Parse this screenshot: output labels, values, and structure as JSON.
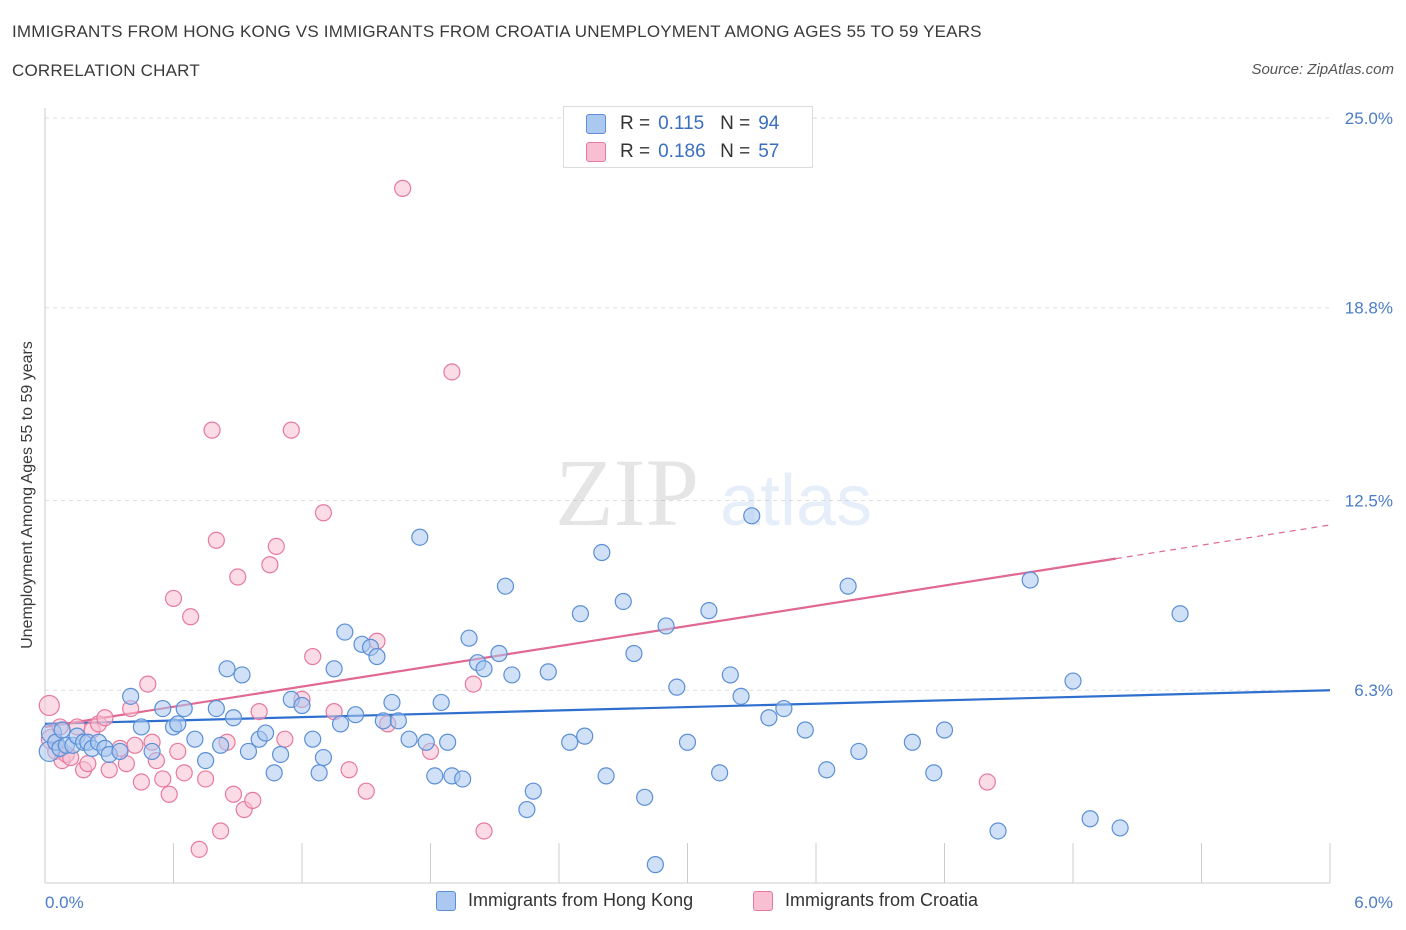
{
  "header": {
    "title": "IMMIGRANTS FROM HONG KONG VS IMMIGRANTS FROM CROATIA UNEMPLOYMENT AMONG AGES 55 TO 59 YEARS",
    "subtitle": "CORRELATION CHART",
    "source": "Source: ZipAtlas.com"
  },
  "watermark": {
    "zip": "ZIP",
    "atlas": "atlas"
  },
  "legend": {
    "hk": {
      "r_label": "R =",
      "r_value": "0.115",
      "n_label": "N =",
      "n_value": "94"
    },
    "hr": {
      "r_label": "R =",
      "r_value": "0.186",
      "n_label": "N =",
      "n_value": "57"
    }
  },
  "colors": {
    "hk_fill": "#aac8f0",
    "hk_stroke": "#5b8fd6",
    "hk_line": "#2f6fce",
    "hr_fill": "#f7bfd1",
    "hr_stroke": "#e8799d",
    "hr_line": "#e06892",
    "tick_text": "#4a7cc7"
  },
  "chart_data": {
    "type": "scatter",
    "title": "IMMIGRANTS FROM HONG KONG VS IMMIGRANTS FROM CROATIA UNEMPLOYMENT AMONG AGES 55 TO 59 YEARS",
    "xlabel": "",
    "ylabel": "Unemployment Among Ages 55 to 59 years",
    "xlim": [
      0,
      6
    ],
    "ylim": [
      0,
      25
    ],
    "x_tick_labels": [
      "0.0%",
      "6.0%"
    ],
    "y_ticks": [
      6.3,
      12.5,
      18.8,
      25.0
    ],
    "y_tick_labels": [
      "6.3%",
      "12.5%",
      "18.8%",
      "25.0%"
    ],
    "grid": "horizontal dashed",
    "legend_position": "top-center",
    "series": [
      {
        "name": "Immigrants from Hong Kong",
        "r": 0.115,
        "n": 94,
        "trend": {
          "x": [
            0,
            6
          ],
          "y": [
            5.2,
            6.3
          ]
        },
        "points": [
          [
            0.02,
            4.3
          ],
          [
            0.03,
            4.9
          ],
          [
            0.05,
            4.6
          ],
          [
            0.07,
            4.4
          ],
          [
            0.08,
            5.0
          ],
          [
            0.1,
            4.5
          ],
          [
            0.13,
            4.5
          ],
          [
            0.15,
            4.8
          ],
          [
            0.18,
            4.6
          ],
          [
            0.2,
            4.6
          ],
          [
            0.22,
            4.4
          ],
          [
            0.25,
            4.6
          ],
          [
            0.28,
            4.4
          ],
          [
            0.3,
            4.2
          ],
          [
            0.35,
            4.3
          ],
          [
            0.4,
            6.1
          ],
          [
            0.45,
            5.1
          ],
          [
            0.5,
            4.3
          ],
          [
            0.55,
            5.7
          ],
          [
            0.6,
            5.1
          ],
          [
            0.62,
            5.2
          ],
          [
            0.65,
            5.7
          ],
          [
            0.7,
            4.7
          ],
          [
            0.75,
            4.0
          ],
          [
            0.8,
            5.7
          ],
          [
            0.82,
            4.5
          ],
          [
            0.85,
            7.0
          ],
          [
            0.88,
            5.4
          ],
          [
            0.92,
            6.8
          ],
          [
            0.95,
            4.3
          ],
          [
            1.0,
            4.7
          ],
          [
            1.03,
            4.9
          ],
          [
            1.07,
            3.6
          ],
          [
            1.1,
            4.2
          ],
          [
            1.15,
            6.0
          ],
          [
            1.2,
            5.8
          ],
          [
            1.25,
            4.7
          ],
          [
            1.28,
            3.6
          ],
          [
            1.3,
            4.1
          ],
          [
            1.35,
            7.0
          ],
          [
            1.38,
            5.2
          ],
          [
            1.4,
            8.2
          ],
          [
            1.45,
            5.5
          ],
          [
            1.48,
            7.8
          ],
          [
            1.52,
            7.7
          ],
          [
            1.55,
            7.4
          ],
          [
            1.58,
            5.3
          ],
          [
            1.62,
            5.9
          ],
          [
            1.65,
            5.3
          ],
          [
            1.7,
            4.7
          ],
          [
            1.75,
            11.3
          ],
          [
            1.78,
            4.6
          ],
          [
            1.82,
            3.5
          ],
          [
            1.85,
            5.9
          ],
          [
            1.88,
            4.6
          ],
          [
            1.9,
            3.5
          ],
          [
            1.95,
            3.4
          ],
          [
            1.98,
            8.0
          ],
          [
            2.02,
            7.2
          ],
          [
            2.05,
            7.0
          ],
          [
            2.12,
            7.5
          ],
          [
            2.15,
            9.7
          ],
          [
            2.18,
            6.8
          ],
          [
            2.25,
            2.4
          ],
          [
            2.28,
            3.0
          ],
          [
            2.35,
            6.9
          ],
          [
            2.45,
            4.6
          ],
          [
            2.5,
            8.8
          ],
          [
            2.52,
            4.8
          ],
          [
            2.6,
            10.8
          ],
          [
            2.62,
            3.5
          ],
          [
            2.7,
            9.2
          ],
          [
            2.75,
            7.5
          ],
          [
            2.8,
            2.8
          ],
          [
            2.85,
            0.6
          ],
          [
            2.9,
            8.4
          ],
          [
            2.95,
            6.4
          ],
          [
            3.0,
            4.6
          ],
          [
            3.1,
            8.9
          ],
          [
            3.15,
            3.6
          ],
          [
            3.2,
            6.8
          ],
          [
            3.25,
            6.1
          ],
          [
            3.3,
            12.0
          ],
          [
            3.38,
            5.4
          ],
          [
            3.45,
            5.7
          ],
          [
            3.55,
            5.0
          ],
          [
            3.65,
            3.7
          ],
          [
            3.75,
            9.7
          ],
          [
            3.8,
            4.3
          ],
          [
            4.05,
            4.6
          ],
          [
            4.15,
            3.6
          ],
          [
            4.2,
            5.0
          ],
          [
            4.45,
            1.7
          ],
          [
            4.6,
            9.9
          ],
          [
            4.8,
            6.6
          ],
          [
            4.88,
            2.1
          ],
          [
            5.02,
            1.8
          ],
          [
            5.3,
            8.8
          ]
        ]
      },
      {
        "name": "Immigrants from Croatia",
        "r": 0.186,
        "n": 57,
        "trend": {
          "x": [
            0,
            6
          ],
          "y": [
            5.1,
            11.7
          ]
        },
        "trend_solid_until_x": 5.0,
        "points": [
          [
            0.02,
            5.8
          ],
          [
            0.03,
            4.7
          ],
          [
            0.05,
            4.3
          ],
          [
            0.07,
            5.1
          ],
          [
            0.08,
            4.0
          ],
          [
            0.1,
            4.2
          ],
          [
            0.12,
            4.1
          ],
          [
            0.15,
            5.1
          ],
          [
            0.18,
            3.7
          ],
          [
            0.2,
            3.9
          ],
          [
            0.22,
            5.0
          ],
          [
            0.25,
            5.2
          ],
          [
            0.28,
            5.4
          ],
          [
            0.3,
            3.7
          ],
          [
            0.35,
            4.4
          ],
          [
            0.38,
            3.9
          ],
          [
            0.4,
            5.7
          ],
          [
            0.42,
            4.5
          ],
          [
            0.45,
            3.3
          ],
          [
            0.48,
            6.5
          ],
          [
            0.5,
            4.6
          ],
          [
            0.52,
            4.0
          ],
          [
            0.55,
            3.4
          ],
          [
            0.58,
            2.9
          ],
          [
            0.6,
            9.3
          ],
          [
            0.62,
            4.3
          ],
          [
            0.65,
            3.6
          ],
          [
            0.68,
            8.7
          ],
          [
            0.72,
            1.1
          ],
          [
            0.75,
            3.4
          ],
          [
            0.78,
            14.8
          ],
          [
            0.8,
            11.2
          ],
          [
            0.82,
            1.7
          ],
          [
            0.85,
            4.6
          ],
          [
            0.88,
            2.9
          ],
          [
            0.9,
            10.0
          ],
          [
            0.93,
            2.4
          ],
          [
            0.97,
            2.7
          ],
          [
            1.0,
            5.6
          ],
          [
            1.05,
            10.4
          ],
          [
            1.08,
            11.0
          ],
          [
            1.12,
            4.7
          ],
          [
            1.15,
            14.8
          ],
          [
            1.2,
            6.0
          ],
          [
            1.25,
            7.4
          ],
          [
            1.3,
            12.1
          ],
          [
            1.35,
            5.6
          ],
          [
            1.42,
            3.7
          ],
          [
            1.5,
            3.0
          ],
          [
            1.55,
            7.9
          ],
          [
            1.6,
            5.2
          ],
          [
            1.67,
            22.7
          ],
          [
            1.8,
            4.3
          ],
          [
            1.9,
            16.7
          ],
          [
            2.0,
            6.5
          ],
          [
            2.05,
            1.7
          ],
          [
            4.4,
            3.3
          ]
        ]
      }
    ]
  },
  "bottom_legend": {
    "hk_label": "Immigrants from Hong Kong",
    "hr_label": "Immigrants from Croatia"
  }
}
